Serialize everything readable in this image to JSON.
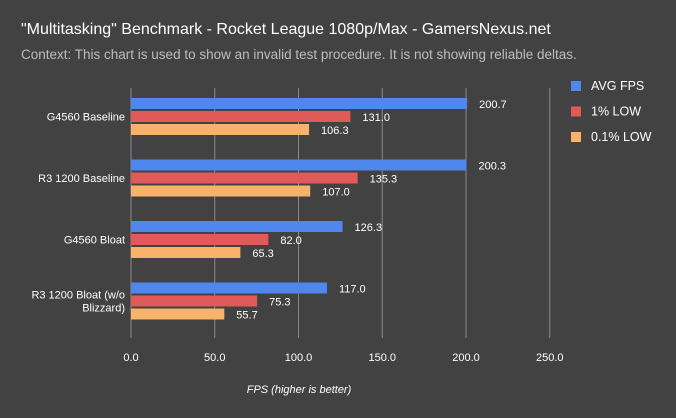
{
  "chart_data": {
    "type": "bar",
    "orientation": "horizontal",
    "title": "\"Multitasking\" Benchmark - Rocket League 1080p/Max - GamersNexus.net",
    "subtitle": "Context: This chart is used to show an invalid test procedure. It is not showing reliable deltas.",
    "xlabel": "FPS (higher is better)",
    "ylabel": "",
    "xlim": [
      0,
      250
    ],
    "xticks": [
      "0.0",
      "50.0",
      "100.0",
      "150.0",
      "200.0",
      "250.0"
    ],
    "grid": true,
    "legend_position": "top-right",
    "categories": [
      "G4560 Baseline",
      "R3 1200 Baseline",
      "G4560 Bloat",
      "R3 1200 Bloat (w/o Blizzard)"
    ],
    "category_lines": [
      [
        "G4560 Baseline"
      ],
      [
        "R3 1200 Baseline"
      ],
      [
        "G4560 Bloat"
      ],
      [
        "R3 1200 Bloat (w/o",
        "Blizzard)"
      ]
    ],
    "series": [
      {
        "name": "AVG FPS",
        "color": "#4f87ec",
        "values": [
          200.7,
          200.3,
          126.3,
          117.0
        ],
        "labels": [
          "200.7",
          "200.3",
          "126.3",
          "117.0"
        ]
      },
      {
        "name": "1% LOW",
        "color": "#e05a5a",
        "values": [
          131.0,
          135.3,
          82.0,
          75.3
        ],
        "labels": [
          "131.0",
          "135.3",
          "82.0",
          "75.3"
        ]
      },
      {
        "name": "0.1% LOW",
        "color": "#f8b26a",
        "values": [
          106.3,
          107.0,
          65.3,
          55.7
        ],
        "labels": [
          "106.3",
          "107.0",
          "65.3",
          "55.7"
        ]
      }
    ]
  }
}
